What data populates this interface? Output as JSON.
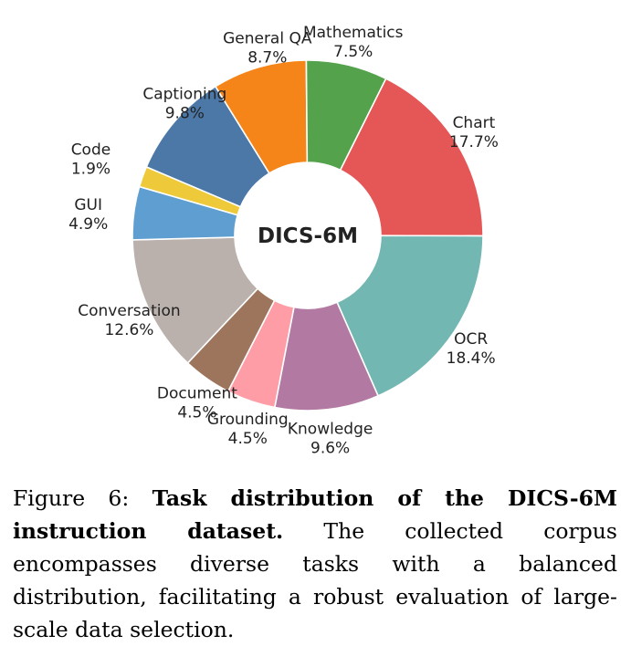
{
  "chart_data": {
    "type": "pie",
    "donut": true,
    "center_label": "DICS-6M",
    "slices": [
      {
        "label": "Captioning",
        "value": 9.8,
        "pct": "9.8%",
        "color": "#4c78a8"
      },
      {
        "label": "General QA",
        "value": 8.7,
        "pct": "8.7%",
        "color": "#f58518"
      },
      {
        "label": "Mathematics",
        "value": 7.5,
        "pct": "7.5%",
        "color": "#54a24b"
      },
      {
        "label": "Chart",
        "value": 17.7,
        "pct": "17.7%",
        "color": "#e45756"
      },
      {
        "label": "OCR",
        "value": 18.4,
        "pct": "18.4%",
        "color": "#72b7b2"
      },
      {
        "label": "Knowledge",
        "value": 9.6,
        "pct": "9.6%",
        "color": "#b279a2"
      },
      {
        "label": "Grounding",
        "value": 4.5,
        "pct": "4.5%",
        "color": "#ff9da6"
      },
      {
        "label": "Document",
        "value": 4.5,
        "pct": "4.5%",
        "color": "#9d755d"
      },
      {
        "label": "Conversation",
        "value": 12.6,
        "pct": "12.6%",
        "color": "#bab0ac"
      },
      {
        "label": "GUI",
        "value": 4.9,
        "pct": "4.9%",
        "color": "#5f9ed1"
      },
      {
        "label": "Code",
        "value": 1.9,
        "pct": "1.9%",
        "color": "#eeca3b"
      }
    ]
  },
  "caption": {
    "figure_label": "Figure 6:",
    "bold_title": "Task distribution of the DICS-6M instruction dataset.",
    "text": "The collected corpus encompasses diverse tasks with a balanced distribution, facilitating a robust evaluation of large-scale data selection."
  }
}
